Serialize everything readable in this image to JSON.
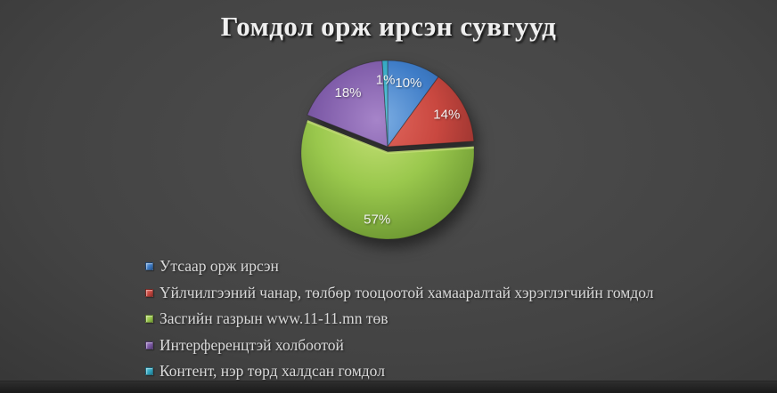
{
  "title": "Гомдол орж ирсэн сувгууд",
  "chart_data": {
    "type": "pie",
    "title": "Гомдол орж ирсэн сувгууд",
    "direction": "clockwise",
    "start_angle_deg": 0,
    "legend_position": "bottom-left",
    "background": "#3a3a3a",
    "slices": [
      {
        "key": "utsaar",
        "label": "Утсаар орж ирсэн",
        "value": 10,
        "pct_label": "10%",
        "exploded": false,
        "color": {
          "light": "#7FB0E4",
          "base": "#3E7CC7",
          "dark": "#28568F"
        }
      },
      {
        "key": "uilchilgee",
        "label": "Үйлчилгээний чанар, төлбөр тооцоотой хамааралтай хэрэглэгчийн гомдол",
        "value": 14,
        "pct_label": "14%",
        "exploded": false,
        "color": {
          "light": "#E2695F",
          "base": "#C94840",
          "dark": "#8F2F2B"
        }
      },
      {
        "key": "zasgiin",
        "label": "Засгийн газрын www.11-11.mn төв",
        "value": 57,
        "pct_label": "57%",
        "exploded": true,
        "color": {
          "light": "#C3DF74",
          "base": "#9AC84D",
          "dark": "#6F9A33"
        }
      },
      {
        "key": "interference",
        "label": "Интерференцтэй холбоотой",
        "value": 18,
        "pct_label": "18%",
        "exploded": false,
        "color": {
          "light": "#A684C9",
          "base": "#7E5BA8",
          "dark": "#573F7A"
        }
      },
      {
        "key": "content",
        "label": "Контент, нэр төрд халдсан гомдол",
        "value": 1,
        "pct_label": "1%",
        "exploded": false,
        "color": {
          "light": "#62CBDD",
          "base": "#34A8C3",
          "dark": "#1F7B92"
        }
      }
    ],
    "label_color": "#F2F2F2",
    "text_color": "#D9D9D9",
    "title_color": "#EFEFEF"
  }
}
